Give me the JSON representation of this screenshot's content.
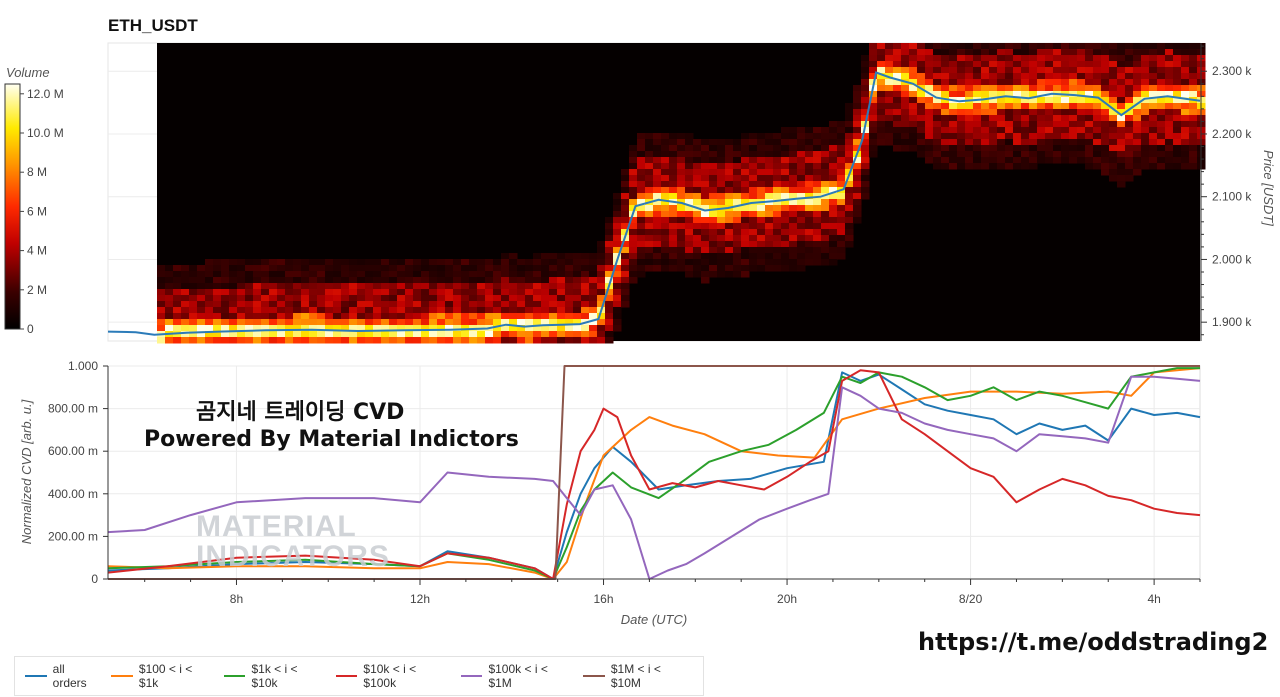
{
  "title": "ETH_USDT",
  "overlay": {
    "line1": "곰지네 트레이딩 CVD",
    "line2": "Powered By Material Indictors"
  },
  "watermark": {
    "line1": "MATERIAL",
    "line2": "INDICATORS"
  },
  "url": "https://t.me/oddstrading2",
  "colorbar": {
    "label": "Volume",
    "ticks": [
      "12.0 M",
      "10.0 M",
      "8 M",
      "6 M",
      "4 M",
      "2 M",
      "0"
    ]
  },
  "chart_data": [
    {
      "type": "heatmap",
      "title": "ETH_USDT",
      "ylabel": "Price [USDT]",
      "y_ticks": [
        "2.300 k",
        "2.200 k",
        "2.100 k",
        "2.000 k",
        "1.900 k"
      ],
      "y_tick_values": [
        2300,
        2200,
        2100,
        2000,
        1900
      ],
      "ylim": [
        1870,
        2345
      ],
      "x_range_hours": [
        4.6,
        28.2
      ],
      "price_series": {
        "color": "#2b7bb9",
        "t": [
          4.6,
          5.2,
          5.6,
          6.3,
          7.0,
          8.0,
          9.0,
          10.0,
          11.0,
          12.0,
          12.8,
          13.2,
          13.6,
          14.0,
          14.4,
          14.8,
          15.2,
          15.6,
          16.0,
          16.5,
          17.0,
          17.5,
          18.0,
          18.5,
          19.0,
          19.5,
          20.0,
          20.5,
          20.9,
          21.2,
          21.5,
          22.0,
          22.5,
          23.0,
          23.5,
          24.0,
          24.5,
          25.0,
          25.5,
          26.0,
          26.5,
          27.0,
          27.5,
          28.0,
          28.2
        ],
        "price": [
          1885,
          1884,
          1880,
          1883,
          1885,
          1887,
          1888,
          1886,
          1887,
          1888,
          1890,
          1896,
          1893,
          1895,
          1896,
          1897,
          1905,
          1998,
          2085,
          2095,
          2090,
          2078,
          2082,
          2090,
          2093,
          2097,
          2100,
          2112,
          2190,
          2298,
          2290,
          2280,
          2258,
          2252,
          2255,
          2260,
          2257,
          2264,
          2262,
          2258,
          2230,
          2256,
          2260,
          2255,
          2253
        ]
      },
      "colorbar": {
        "label": "Volume",
        "min": 0,
        "max": 12.5,
        "unit": "M"
      }
    },
    {
      "type": "line",
      "xlabel": "Date (UTC)",
      "ylabel": "Normalized CVD [arb. u.]",
      "x_ticks": [
        "8h",
        "12h",
        "16h",
        "20h",
        "8/20",
        "4h"
      ],
      "x_tick_values": [
        8,
        12,
        16,
        20,
        24,
        28
      ],
      "y_ticks": [
        "1.000",
        "800.00 m",
        "600.00 m",
        "400.00 m",
        "200.00 m",
        "0"
      ],
      "y_tick_values": [
        1.0,
        0.8,
        0.6,
        0.4,
        0.2,
        0.0
      ],
      "xlim": [
        5.2,
        29.0
      ],
      "ylim": [
        0,
        1.0
      ],
      "grid": true,
      "legend": "bottom",
      "series": [
        {
          "name": "all orders",
          "color": "#1f77b4",
          "x": [
            5.2,
            6.5,
            8.0,
            9.5,
            11.0,
            12.0,
            12.6,
            13.5,
            14.5,
            14.9,
            15.2,
            15.5,
            15.8,
            16.2,
            16.6,
            17.2,
            17.8,
            18.5,
            19.2,
            20.0,
            20.8,
            21.2,
            21.6,
            22.0,
            22.5,
            23.0,
            23.5,
            24.0,
            24.5,
            25.0,
            25.5,
            26.0,
            26.5,
            27.0,
            27.5,
            28.0,
            28.5,
            29.0
          ],
          "y": [
            0.04,
            0.05,
            0.07,
            0.08,
            0.07,
            0.06,
            0.13,
            0.1,
            0.05,
            0.0,
            0.22,
            0.4,
            0.52,
            0.62,
            0.55,
            0.42,
            0.44,
            0.46,
            0.47,
            0.52,
            0.55,
            0.97,
            0.93,
            0.96,
            0.89,
            0.82,
            0.79,
            0.77,
            0.75,
            0.68,
            0.73,
            0.7,
            0.72,
            0.65,
            0.8,
            0.77,
            0.78,
            0.76
          ]
        },
        {
          "name": "$100 < i < $1k",
          "color": "#ff7f0e",
          "x": [
            5.2,
            6.5,
            8.0,
            9.5,
            11.0,
            12.0,
            12.6,
            13.5,
            14.5,
            14.9,
            15.2,
            15.6,
            16.0,
            16.6,
            17.0,
            17.5,
            18.2,
            19.0,
            19.8,
            20.6,
            21.2,
            22.0,
            23.0,
            24.0,
            25.0,
            26.0,
            27.0,
            27.5,
            28.0,
            29.0
          ],
          "y": [
            0.06,
            0.05,
            0.06,
            0.06,
            0.05,
            0.05,
            0.08,
            0.07,
            0.03,
            0.0,
            0.08,
            0.35,
            0.58,
            0.7,
            0.76,
            0.72,
            0.68,
            0.6,
            0.58,
            0.57,
            0.75,
            0.8,
            0.85,
            0.88,
            0.88,
            0.87,
            0.88,
            0.86,
            0.97,
            0.99
          ]
        },
        {
          "name": "$1k < i < $10k",
          "color": "#2ca02c",
          "x": [
            5.2,
            6.5,
            8.0,
            9.5,
            11.0,
            12.0,
            12.6,
            13.5,
            14.5,
            14.9,
            15.2,
            15.5,
            15.8,
            16.2,
            16.6,
            17.2,
            17.8,
            18.3,
            19.0,
            19.6,
            20.2,
            20.8,
            21.2,
            21.6,
            22.0,
            22.5,
            23.0,
            23.5,
            24.0,
            24.5,
            25.0,
            25.5,
            26.0,
            26.5,
            27.0,
            27.5,
            28.0,
            28.5,
            29.0
          ],
          "y": [
            0.05,
            0.06,
            0.08,
            0.09,
            0.07,
            0.06,
            0.12,
            0.09,
            0.04,
            0.0,
            0.15,
            0.32,
            0.42,
            0.5,
            0.43,
            0.38,
            0.47,
            0.55,
            0.6,
            0.63,
            0.7,
            0.78,
            0.95,
            0.92,
            0.97,
            0.95,
            0.9,
            0.84,
            0.86,
            0.9,
            0.84,
            0.88,
            0.86,
            0.83,
            0.8,
            0.95,
            0.97,
            0.99,
            0.99
          ]
        },
        {
          "name": "$10k < i < $100k",
          "color": "#d62728",
          "x": [
            5.2,
            6.5,
            8.0,
            9.5,
            11.0,
            12.0,
            12.6,
            13.5,
            14.5,
            14.9,
            15.2,
            15.5,
            15.8,
            16.0,
            16.3,
            16.6,
            17.0,
            17.5,
            18.0,
            18.5,
            19.0,
            19.5,
            20.0,
            20.5,
            20.9,
            21.2,
            21.6,
            22.0,
            22.5,
            23.0,
            23.5,
            24.0,
            24.5,
            25.0,
            25.5,
            26.0,
            26.5,
            27.0,
            27.5,
            28.0,
            28.5,
            29.0
          ],
          "y": [
            0.03,
            0.06,
            0.1,
            0.11,
            0.09,
            0.06,
            0.12,
            0.1,
            0.05,
            0.0,
            0.35,
            0.6,
            0.7,
            0.8,
            0.76,
            0.58,
            0.42,
            0.45,
            0.43,
            0.46,
            0.44,
            0.42,
            0.48,
            0.55,
            0.6,
            0.93,
            0.98,
            0.97,
            0.75,
            0.68,
            0.6,
            0.52,
            0.48,
            0.36,
            0.42,
            0.47,
            0.44,
            0.39,
            0.37,
            0.33,
            0.31,
            0.3
          ]
        },
        {
          "name": "$100k < i < $1M",
          "color": "#9467bd",
          "x": [
            5.2,
            6.0,
            7.0,
            8.0,
            9.5,
            11.0,
            12.0,
            12.6,
            13.5,
            14.5,
            14.9,
            15.2,
            15.5,
            15.8,
            16.2,
            16.6,
            17.0,
            17.4,
            17.8,
            18.2,
            18.8,
            19.4,
            20.0,
            20.5,
            20.9,
            21.2,
            21.6,
            22.0,
            22.5,
            23.0,
            23.5,
            24.0,
            24.5,
            25.0,
            25.5,
            26.0,
            26.5,
            27.0,
            27.5,
            28.0,
            28.5,
            29.0
          ],
          "y": [
            0.22,
            0.23,
            0.3,
            0.36,
            0.38,
            0.38,
            0.36,
            0.5,
            0.48,
            0.47,
            0.46,
            0.38,
            0.3,
            0.42,
            0.44,
            0.28,
            0.0,
            0.04,
            0.07,
            0.12,
            0.2,
            0.28,
            0.33,
            0.37,
            0.4,
            0.9,
            0.86,
            0.8,
            0.78,
            0.73,
            0.7,
            0.68,
            0.66,
            0.6,
            0.68,
            0.67,
            0.66,
            0.64,
            0.95,
            0.95,
            0.94,
            0.93
          ]
        },
        {
          "name": "$1M < i < $10M",
          "color": "#8c564b",
          "x": [
            5.2,
            14.95,
            15.05,
            15.15,
            29.0
          ],
          "y": [
            0.0,
            0.0,
            0.5,
            1.0,
            1.0
          ]
        }
      ]
    }
  ],
  "legend_items": [
    {
      "name": "all orders",
      "color": "#1f77b4"
    },
    {
      "name": "$100 < i < $1k",
      "color": "#ff7f0e"
    },
    {
      "name": "$1k < i < $10k",
      "color": "#2ca02c"
    },
    {
      "name": "$10k < i < $100k",
      "color": "#d62728"
    },
    {
      "name": "$100k < i < $1M",
      "color": "#9467bd"
    },
    {
      "name": "$1M < i < $10M",
      "color": "#8c564b"
    }
  ]
}
